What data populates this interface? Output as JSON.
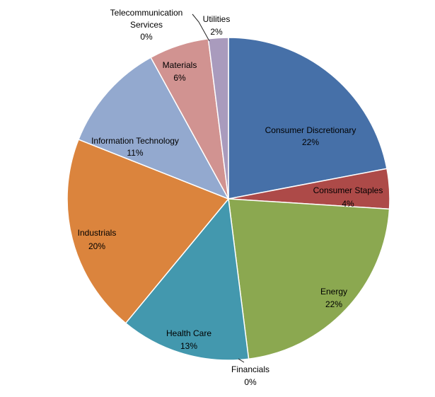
{
  "chart_data": {
    "type": "pie",
    "title": "",
    "legend": "none",
    "slices": [
      {
        "label": "Consumer Discretionary",
        "value": 22,
        "value_label": "22%",
        "color": "#4670A8"
      },
      {
        "label": "Consumer Staples",
        "value": 4,
        "value_label": "4%",
        "color": "#AD4A48"
      },
      {
        "label": "Energy",
        "value": 22,
        "value_label": "22%",
        "color": "#8BA850"
      },
      {
        "label": "Financials",
        "value": 0,
        "value_label": "0%",
        "color": "#8064A2"
      },
      {
        "label": "Health Care",
        "value": 13,
        "value_label": "13%",
        "color": "#4398AE"
      },
      {
        "label": "Industrials",
        "value": 20,
        "value_label": "20%",
        "color": "#DB843D"
      },
      {
        "label": "Information Technology",
        "value": 11,
        "value_label": "11%",
        "color": "#93A9CF"
      },
      {
        "label": "Materials",
        "value": 6,
        "value_label": "6%",
        "color": "#D19391"
      },
      {
        "label": "Telecommunication Services",
        "value": 0,
        "value_label": "0%",
        "color": "#B9CD96"
      },
      {
        "label": "Utilities",
        "value": 2,
        "value_label": "2%",
        "color": "#A99BBD"
      }
    ]
  }
}
